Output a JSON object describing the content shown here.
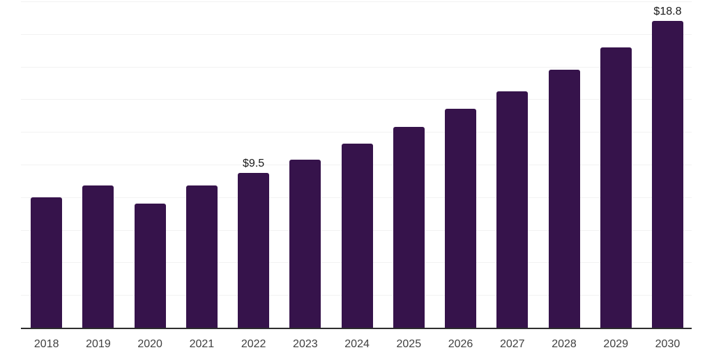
{
  "chart": {
    "background_color": "#ffffff",
    "bar_color": "#36134b",
    "gridline_color": "#f2f2f2",
    "axis_line_color": "#2d2d2d",
    "tick_label_color": "#3f3f3f",
    "data_label_color": "#1a1a1a"
  },
  "chart_data": {
    "type": "bar",
    "title": "",
    "xlabel": "",
    "ylabel": "",
    "categories": [
      "2018",
      "2019",
      "2020",
      "2021",
      "2022",
      "2023",
      "2024",
      "2025",
      "2026",
      "2027",
      "2028",
      "2029",
      "2030"
    ],
    "values": [
      8.0,
      8.7,
      7.6,
      8.7,
      9.5,
      10.3,
      11.3,
      12.3,
      13.4,
      14.5,
      15.8,
      17.2,
      18.8
    ],
    "data_labels": {
      "2022": "$9.5",
      "2030": "$18.8"
    },
    "ylim": [
      0,
      20
    ],
    "grid_step": 2,
    "grid": "horizontal",
    "legend_position": "none",
    "y_axis_tick_labels_visible": false
  }
}
